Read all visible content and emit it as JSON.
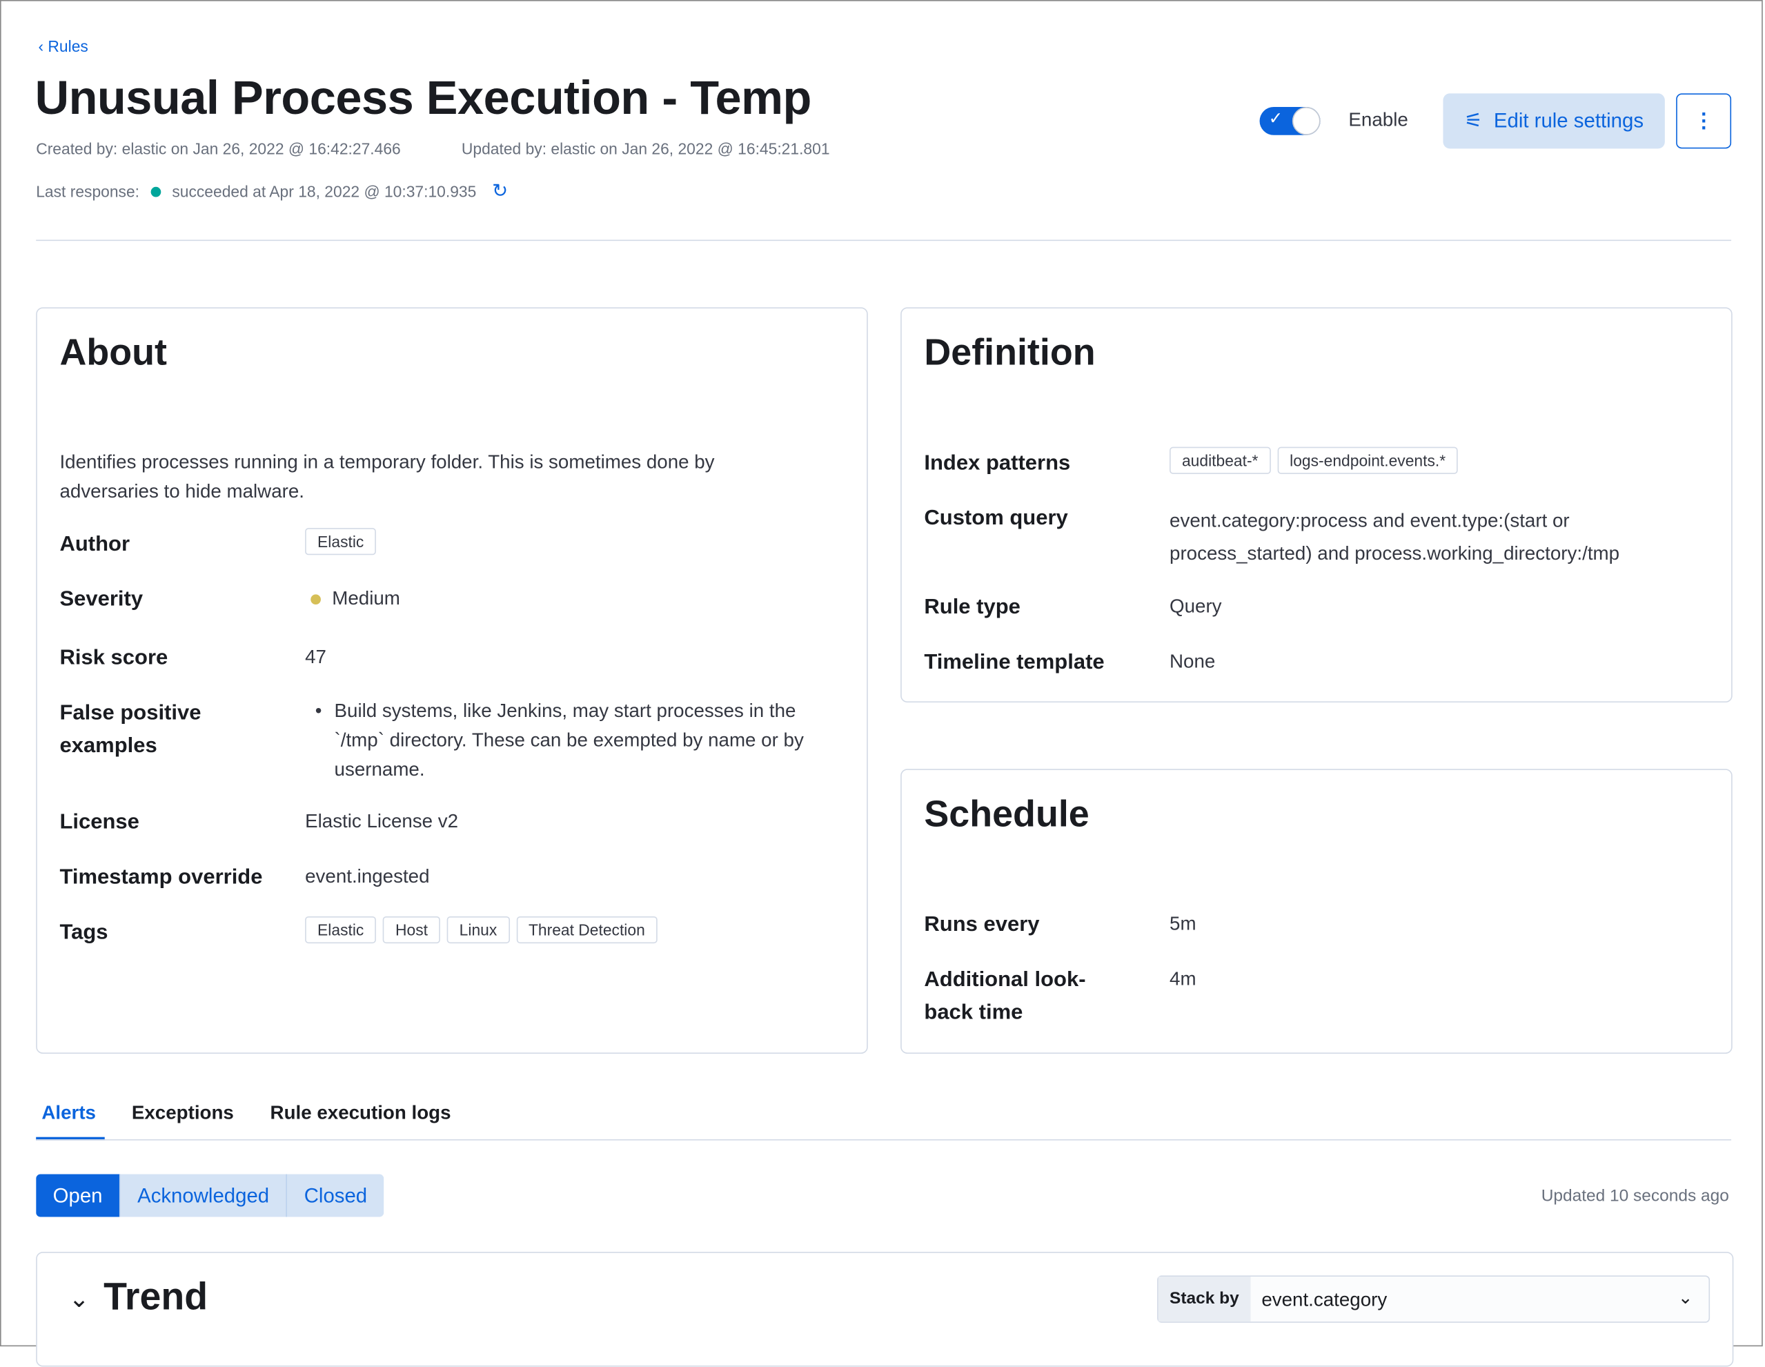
{
  "header": {
    "back_label": "Rules",
    "title": "Unusual Process Execution - Temp",
    "created": "Created by: elastic on Jan 26, 2022 @ 16:42:27.466",
    "updated": "Updated by: elastic on Jan 26, 2022 @ 16:45:21.801",
    "last_response_label": "Last response:",
    "last_response": "succeeded at Apr 18, 2022 @ 10:37:10.935",
    "status_color": "#00a69b",
    "enable_label": "Enable",
    "enabled": true,
    "edit_label": "Edit rule settings"
  },
  "about": {
    "title": "About",
    "description": "Identifies processes running in a temporary folder. This is sometimes done by adversaries to hide malware.",
    "fields": {
      "author_label": "Author",
      "author": "Elastic",
      "severity_label": "Severity",
      "severity": "Medium",
      "severity_color": "#d6bf57",
      "risk_label": "Risk score",
      "risk": "47",
      "fp_label": "False positive examples",
      "fp": "Build systems, like Jenkins, may start processes in the `/tmp` directory. These can be exempted by name or by username.",
      "license_label": "License",
      "license": "Elastic License v2",
      "ts_label": "Timestamp override",
      "ts": "event.ingested",
      "tags_label": "Tags",
      "tags": [
        "Elastic",
        "Host",
        "Linux",
        "Threat Detection"
      ]
    }
  },
  "definition": {
    "title": "Definition",
    "index_label": "Index patterns",
    "index": [
      "auditbeat-*",
      "logs-endpoint.events.*"
    ],
    "query_label": "Custom query",
    "query": "event.category:process and event.type:(start or process_started) and process.working_directory:/tmp",
    "type_label": "Rule type",
    "type": "Query",
    "timeline_label": "Timeline template",
    "timeline": "None"
  },
  "schedule": {
    "title": "Schedule",
    "runs_label": "Runs every",
    "runs": "5m",
    "lookback_label": "Additional look-back time",
    "lookback": "4m"
  },
  "tabs": [
    "Alerts",
    "Exceptions",
    "Rule execution logs"
  ],
  "filters": [
    "Open",
    "Acknowledged",
    "Closed"
  ],
  "updated_text": "Updated 10 seconds ago",
  "trend": {
    "title": "Trend",
    "stack_label": "Stack by",
    "stack_value": "event.category"
  }
}
